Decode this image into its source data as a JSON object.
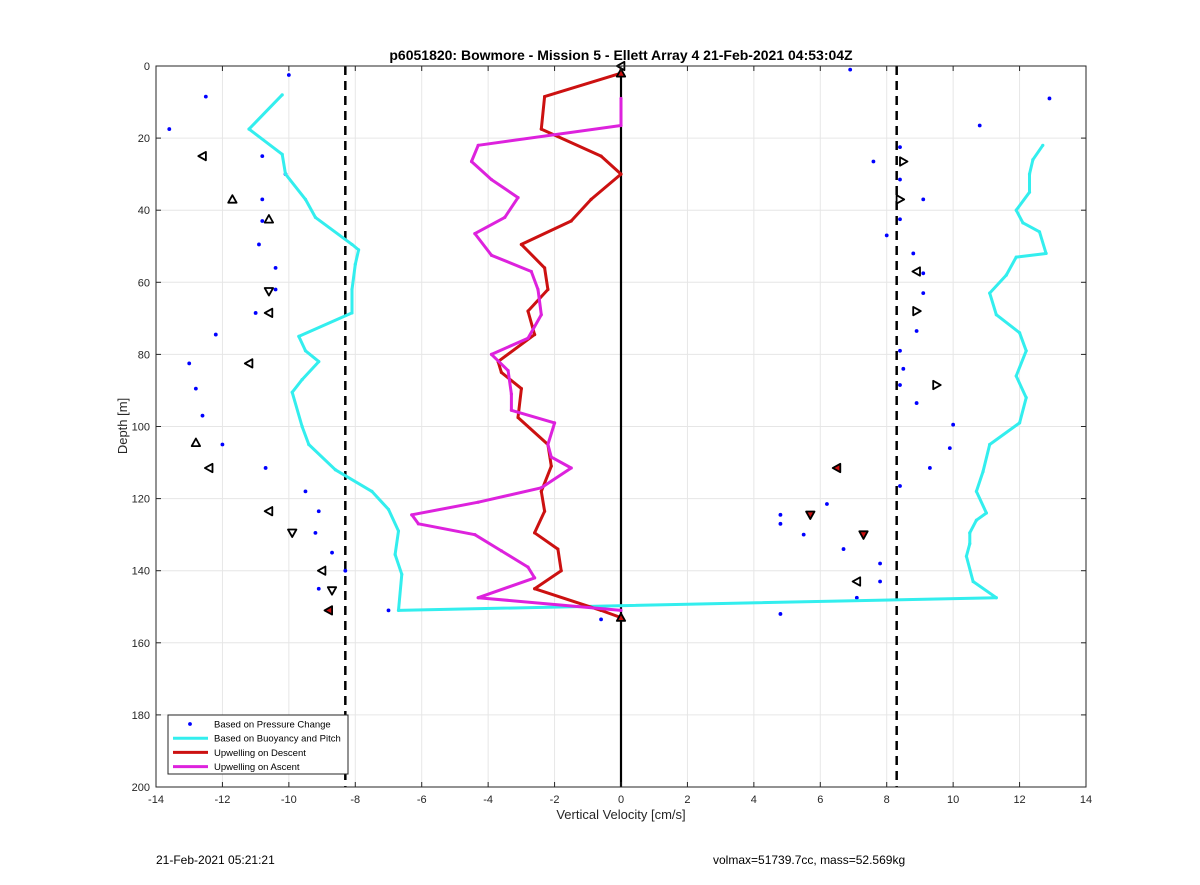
{
  "footer": {
    "timestamp": "21-Feb-2021 05:21:21",
    "vehicle_info": "volmax=51739.7cc, mass=52.569kg"
  },
  "chart_data": {
    "type": "line",
    "title": "p6051820: Bowmore - Mission 5 - Ellett Array 4 21-Feb-2021 04:53:04Z",
    "xlabel": "Vertical Velocity [cm/s]",
    "ylabel": "Depth [m]",
    "xlim": [
      -14,
      14
    ],
    "ylim": [
      0,
      200
    ],
    "y_reversed": true,
    "grid": true,
    "xticks": [
      -14,
      -12,
      -10,
      -8,
      -6,
      -4,
      -2,
      0,
      2,
      4,
      6,
      8,
      10,
      12,
      14
    ],
    "yticks": [
      0,
      20,
      40,
      60,
      80,
      100,
      120,
      140,
      160,
      180,
      200
    ],
    "legend_position": "bottom-left",
    "colors": {
      "pressure": "#0000ff",
      "buoyancy": "#33eeee",
      "descent": "#cc1111",
      "ascent": "#dd22dd",
      "reference": "#000000",
      "marker_fill_red": "#cc1111"
    },
    "reference_lines": [
      {
        "style": "dashed",
        "x": -8.3
      },
      {
        "style": "dashed",
        "x": 8.3
      },
      {
        "style": "solid",
        "x": 0
      }
    ],
    "series": [
      {
        "name": "Based on Pressure Change",
        "style": "dots",
        "points": [
          [
            -10,
            2.5
          ],
          [
            -12.5,
            8.5
          ],
          [
            -13.6,
            17.5
          ],
          [
            -10.8,
            25
          ],
          [
            -10.1,
            30
          ],
          [
            -10.8,
            37
          ],
          [
            -10.8,
            43
          ],
          [
            -10.9,
            49.5
          ],
          [
            -10.4,
            56
          ],
          [
            -10.4,
            62
          ],
          [
            -11,
            68.5
          ],
          [
            -12.2,
            74.5
          ],
          [
            -13,
            82.5
          ],
          [
            -12.8,
            89.5
          ],
          [
            -12.6,
            97
          ],
          [
            -12,
            105
          ],
          [
            -10.7,
            111.5
          ],
          [
            -9.5,
            118
          ],
          [
            -9.1,
            123.5
          ],
          [
            -9.2,
            129.5
          ],
          [
            -8.7,
            135
          ],
          [
            -8.3,
            140
          ],
          [
            -9.1,
            145
          ],
          [
            -7,
            151
          ],
          [
            -0.6,
            153.5
          ],
          [
            6.9,
            1
          ],
          [
            12.9,
            9
          ],
          [
            10.8,
            16.5
          ],
          [
            8.4,
            22.5
          ],
          [
            7.6,
            26.5
          ],
          [
            8.4,
            31.5
          ],
          [
            9.1,
            37
          ],
          [
            8.4,
            42.5
          ],
          [
            8,
            47
          ],
          [
            8.8,
            52
          ],
          [
            9.1,
            57.5
          ],
          [
            9.1,
            63
          ],
          [
            8.9,
            68
          ],
          [
            8.9,
            73.5
          ],
          [
            8.4,
            79
          ],
          [
            8.5,
            84
          ],
          [
            8.4,
            88.5
          ],
          [
            8.9,
            93.5
          ],
          [
            10,
            99.5
          ],
          [
            9.9,
            106
          ],
          [
            9.3,
            111.5
          ],
          [
            8.4,
            116.5
          ],
          [
            6.2,
            121.5
          ],
          [
            4.8,
            124.5
          ],
          [
            4.8,
            127
          ],
          [
            5.5,
            130
          ],
          [
            6.7,
            134
          ],
          [
            7.8,
            138
          ],
          [
            7.8,
            143
          ],
          [
            7.1,
            147.5
          ],
          [
            4.8,
            152
          ]
        ]
      },
      {
        "name": "Based on Buoyancy and Pitch",
        "style": "line",
        "points": [
          [
            -10.2,
            8
          ],
          [
            -11.2,
            17.5
          ],
          [
            -10.2,
            24.5
          ],
          [
            -10.1,
            30
          ],
          [
            -9.5,
            37
          ],
          [
            -9.2,
            42
          ],
          [
            -8.1,
            49.5
          ],
          [
            -7.9,
            51
          ],
          [
            -8,
            55
          ],
          [
            -8.1,
            62
          ],
          [
            -8.1,
            68.5
          ],
          [
            -9.7,
            75
          ],
          [
            -9.5,
            79
          ],
          [
            -9.1,
            82
          ],
          [
            -9.6,
            87
          ],
          [
            -9.9,
            90.5
          ],
          [
            -9.6,
            100
          ],
          [
            -9.4,
            105
          ],
          [
            -8.6,
            112
          ],
          [
            -7.5,
            118
          ],
          [
            -7,
            123
          ],
          [
            -6.7,
            129
          ],
          [
            -6.8,
            135.5
          ],
          [
            -6.6,
            141
          ],
          [
            -6.7,
            151
          ],
          [
            11.3,
            147.5
          ],
          [
            10.6,
            143
          ],
          [
            10.4,
            136
          ],
          [
            10.5,
            132.5
          ],
          [
            10.5,
            129.5
          ],
          [
            10.7,
            126
          ],
          [
            11,
            124
          ],
          [
            10.7,
            118
          ],
          [
            10.9,
            112.5
          ],
          [
            11.1,
            105
          ],
          [
            12,
            99
          ],
          [
            12.2,
            92
          ],
          [
            11.9,
            86
          ],
          [
            12.2,
            79
          ],
          [
            12,
            74
          ],
          [
            11.3,
            69
          ],
          [
            11.1,
            63
          ],
          [
            11.6,
            58
          ],
          [
            11.9,
            53
          ],
          [
            12.8,
            52
          ],
          [
            12.6,
            46
          ],
          [
            12.1,
            43.5
          ],
          [
            11.9,
            40
          ],
          [
            12.3,
            35
          ],
          [
            12.3,
            30
          ],
          [
            12.4,
            26
          ],
          [
            12.7,
            22
          ]
        ]
      },
      {
        "name": "Upwelling on Descent",
        "style": "line",
        "points": [
          [
            0,
            0
          ],
          [
            0,
            2
          ],
          [
            -2.3,
            8.5
          ],
          [
            -2.4,
            17.5
          ],
          [
            -0.6,
            25
          ],
          [
            0,
            30
          ],
          [
            -0.9,
            37
          ],
          [
            -1.5,
            43
          ],
          [
            -3,
            49.5
          ],
          [
            -2.3,
            56
          ],
          [
            -2.2,
            62
          ],
          [
            -2.8,
            68
          ],
          [
            -2.6,
            74.5
          ],
          [
            -3.7,
            82
          ],
          [
            -3.6,
            85
          ],
          [
            -3,
            89.5
          ],
          [
            -3.1,
            97.5
          ],
          [
            -2.2,
            105
          ],
          [
            -2.1,
            111
          ],
          [
            -2.4,
            118
          ],
          [
            -2.3,
            123.5
          ],
          [
            -2.6,
            129.5
          ],
          [
            -1.9,
            134
          ],
          [
            -1.8,
            140
          ],
          [
            -2.6,
            145
          ],
          [
            -0.6,
            151
          ],
          [
            0,
            153
          ]
        ]
      },
      {
        "name": "Upwelling on Ascent",
        "style": "line",
        "points": [
          [
            0,
            151
          ],
          [
            -4.3,
            147.5
          ],
          [
            -2.6,
            142
          ],
          [
            -2.8,
            139
          ],
          [
            -3.6,
            134.5
          ],
          [
            -4.4,
            130
          ],
          [
            -6.1,
            127
          ],
          [
            -6.3,
            124.5
          ],
          [
            -4.3,
            121
          ],
          [
            -2.4,
            117
          ],
          [
            -1.5,
            111.5
          ],
          [
            -2.1,
            108.5
          ],
          [
            -2.2,
            105
          ],
          [
            -2,
            99
          ],
          [
            -3.3,
            95.5
          ],
          [
            -3.3,
            91
          ],
          [
            -3.4,
            84.5
          ],
          [
            -3.9,
            80
          ],
          [
            -2.8,
            75.5
          ],
          [
            -2.4,
            69
          ],
          [
            -2.5,
            62
          ],
          [
            -2.7,
            57
          ],
          [
            -3.9,
            52.5
          ],
          [
            -4.4,
            46.5
          ],
          [
            -3.5,
            42
          ],
          [
            -3.1,
            36.5
          ],
          [
            -3.9,
            31.5
          ],
          [
            -4.5,
            26.5
          ],
          [
            -4.3,
            22
          ],
          [
            0,
            16.5
          ],
          [
            0,
            9
          ]
        ]
      }
    ],
    "markers": [
      {
        "point": [
          -12.6,
          25
        ],
        "dir": "left",
        "fill": "none"
      },
      {
        "point": [
          -11.7,
          37
        ],
        "dir": "up",
        "fill": "none"
      },
      {
        "point": [
          -10.6,
          42.5
        ],
        "dir": "up",
        "fill": "none"
      },
      {
        "point": [
          -10.6,
          62.5
        ],
        "dir": "down",
        "fill": "none"
      },
      {
        "point": [
          -10.6,
          68.5
        ],
        "dir": "left",
        "fill": "none"
      },
      {
        "point": [
          -11.2,
          82.5
        ],
        "dir": "left",
        "fill": "none"
      },
      {
        "point": [
          -12.8,
          104.5
        ],
        "dir": "up",
        "fill": "none"
      },
      {
        "point": [
          -12.4,
          111.5
        ],
        "dir": "left",
        "fill": "none"
      },
      {
        "point": [
          -10.6,
          123.5
        ],
        "dir": "left",
        "fill": "none"
      },
      {
        "point": [
          -9.9,
          129.5
        ],
        "dir": "down",
        "fill": "none"
      },
      {
        "point": [
          -9,
          140
        ],
        "dir": "left",
        "fill": "none"
      },
      {
        "point": [
          -8.7,
          145.5
        ],
        "dir": "down",
        "fill": "none"
      },
      {
        "point": [
          -8.8,
          151
        ],
        "dir": "left",
        "fill": "red"
      },
      {
        "point": [
          0,
          0
        ],
        "dir": "left",
        "fill": "none"
      },
      {
        "point": [
          0,
          2
        ],
        "dir": "up",
        "fill": "red"
      },
      {
        "point": [
          0,
          153
        ],
        "dir": "up",
        "fill": "red"
      },
      {
        "point": [
          8.5,
          26.5
        ],
        "dir": "right",
        "fill": "none"
      },
      {
        "point": [
          8.4,
          37
        ],
        "dir": "right",
        "fill": "none"
      },
      {
        "point": [
          8.9,
          57
        ],
        "dir": "left",
        "fill": "none"
      },
      {
        "point": [
          8.9,
          68
        ],
        "dir": "right",
        "fill": "none"
      },
      {
        "point": [
          9.5,
          88.5
        ],
        "dir": "right",
        "fill": "none"
      },
      {
        "point": [
          6.5,
          111.5
        ],
        "dir": "left",
        "fill": "red"
      },
      {
        "point": [
          5.7,
          124.5
        ],
        "dir": "down",
        "fill": "red"
      },
      {
        "point": [
          7.3,
          130
        ],
        "dir": "down",
        "fill": "red"
      },
      {
        "point": [
          7.1,
          143
        ],
        "dir": "left",
        "fill": "none"
      }
    ]
  }
}
